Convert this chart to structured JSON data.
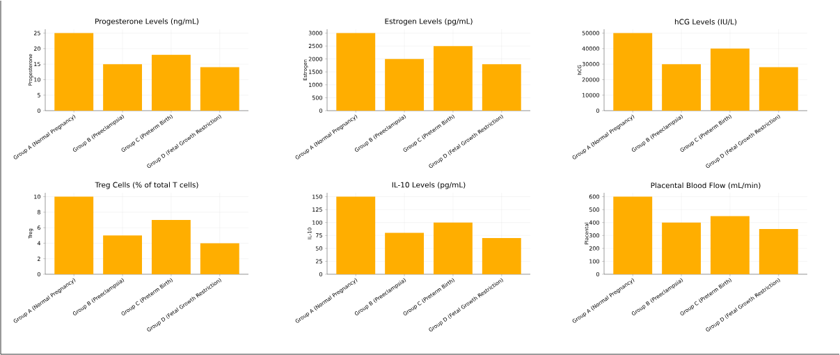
{
  "chart_data": [
    {
      "type": "bar",
      "title": "Progesterone Levels (ng/mL)",
      "ylabel": "Progesterone",
      "categories": [
        "Group A (Normal Pregnancy)",
        "Group B (Preeclampsia)",
        "Group C (Preterm Birth)",
        "Group D (Fetal Growth Restriction)"
      ],
      "values": [
        25,
        15,
        18,
        14
      ],
      "color": "#ffae00",
      "ylim": [
        0,
        26.25
      ],
      "yticks": [
        0,
        5,
        10,
        15,
        20,
        25
      ],
      "grid": true
    },
    {
      "type": "bar",
      "title": "Estrogen Levels (pg/mL)",
      "ylabel": "Estrogen",
      "categories": [
        "Group A (Normal Pregnancy)",
        "Group B (Preeclampsia)",
        "Group C (Preterm Birth)",
        "Group D (Fetal Growth Restriction)"
      ],
      "values": [
        3000,
        2000,
        2500,
        1800
      ],
      "color": "#ffae00",
      "ylim": [
        0,
        3150
      ],
      "yticks": [
        0,
        500,
        1000,
        1500,
        2000,
        2500,
        3000
      ],
      "grid": true
    },
    {
      "type": "bar",
      "title": "hCG Levels (IU/L)",
      "ylabel": "hCG",
      "categories": [
        "Group A (Normal Pregnancy)",
        "Group B (Preeclampsia)",
        "Group C (Preterm Birth)",
        "Group D (Fetal Growth Restriction)"
      ],
      "values": [
        50000,
        30000,
        40000,
        28000
      ],
      "color": "#ffae00",
      "ylim": [
        0,
        52500
      ],
      "yticks": [
        0,
        10000,
        20000,
        30000,
        40000,
        50000
      ],
      "grid": true
    },
    {
      "type": "bar",
      "title": "Treg Cells (% of total T cells)",
      "ylabel": "Treg",
      "categories": [
        "Group A (Normal Pregnancy)",
        "Group B (Preeclampsia)",
        "Group C (Preterm Birth)",
        "Group D (Fetal Growth Restriction)"
      ],
      "values": [
        10,
        5,
        7,
        4
      ],
      "color": "#ffae00",
      "ylim": [
        0,
        10.5
      ],
      "yticks": [
        0,
        2,
        4,
        6,
        8,
        10
      ],
      "grid": true
    },
    {
      "type": "bar",
      "title": "IL-10 Levels (pg/mL)",
      "ylabel": "IL-10",
      "categories": [
        "Group A (Normal Pregnancy)",
        "Group B (Preeclampsia)",
        "Group C (Preterm Birth)",
        "Group D (Fetal Growth Restriction)"
      ],
      "values": [
        150,
        80,
        100,
        70
      ],
      "color": "#ffae00",
      "ylim": [
        0,
        157.5
      ],
      "yticks": [
        0,
        25,
        50,
        75,
        100,
        125,
        150
      ],
      "grid": true
    },
    {
      "type": "bar",
      "title": "Placental Blood Flow (mL/min)",
      "ylabel": "Placental",
      "categories": [
        "Group A (Normal Pregnancy)",
        "Group B (Preeclampsia)",
        "Group C (Preterm Birth)",
        "Group D (Fetal Growth Restriction)"
      ],
      "values": [
        600,
        400,
        450,
        350
      ],
      "color": "#ffae00",
      "ylim": [
        0,
        630
      ],
      "yticks": [
        0,
        100,
        200,
        300,
        400,
        500,
        600
      ],
      "grid": true
    }
  ]
}
